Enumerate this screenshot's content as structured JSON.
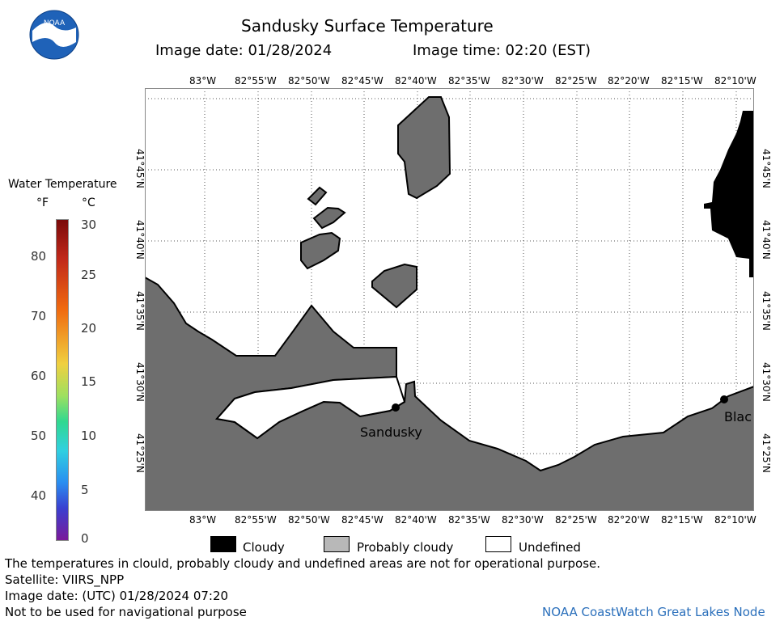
{
  "header": {
    "title": "Sandusky Surface Temperature",
    "date_label": "Image date: 01/28/2024",
    "time_label": "Image time: 02:20 (EST)"
  },
  "logo": {
    "text": "NOAA"
  },
  "map": {
    "lon_ticks": [
      "83°W",
      "82°55'W",
      "82°50'W",
      "82°45'W",
      "82°40'W",
      "82°35'W",
      "82°30'W",
      "82°25'W",
      "82°20'W",
      "82°15'W",
      "82°10'W"
    ],
    "lat_ticks": [
      "41°45'N",
      "41°40'N",
      "41°35'N",
      "41°30'N",
      "41°25'N"
    ],
    "places": [
      {
        "name": "Sandusky"
      },
      {
        "name": "Blac"
      }
    ],
    "colors": {
      "land": "#6e6e6e",
      "cloud": "#000000",
      "water": "#ffffff"
    }
  },
  "scale": {
    "title": "Water Temperature",
    "unit_f": "°F",
    "unit_c": "°C",
    "f_labels": [
      "80",
      "70",
      "60",
      "50",
      "40"
    ],
    "c_labels": [
      "30",
      "25",
      "20",
      "15",
      "10",
      "5",
      "0"
    ],
    "range_c": [
      0,
      30
    ]
  },
  "legend": [
    {
      "label": "Cloudy",
      "color": "#000000"
    },
    {
      "label": "Probably cloudy",
      "color": "#b8b8b8"
    },
    {
      "label": "Undefined",
      "color": "#ffffff"
    }
  ],
  "footer": {
    "disclaimer": "The temperatures in clould, probably cloudy and undefined areas are not for operational purpose.",
    "satellite": "Satellite: VIIRS_NPP",
    "utc_date": "Image date: (UTC) 01/28/2024  07:20",
    "nav_note": "Not to be used for navigational purpose",
    "credit": "NOAA CoastWatch Great Lakes Node"
  }
}
